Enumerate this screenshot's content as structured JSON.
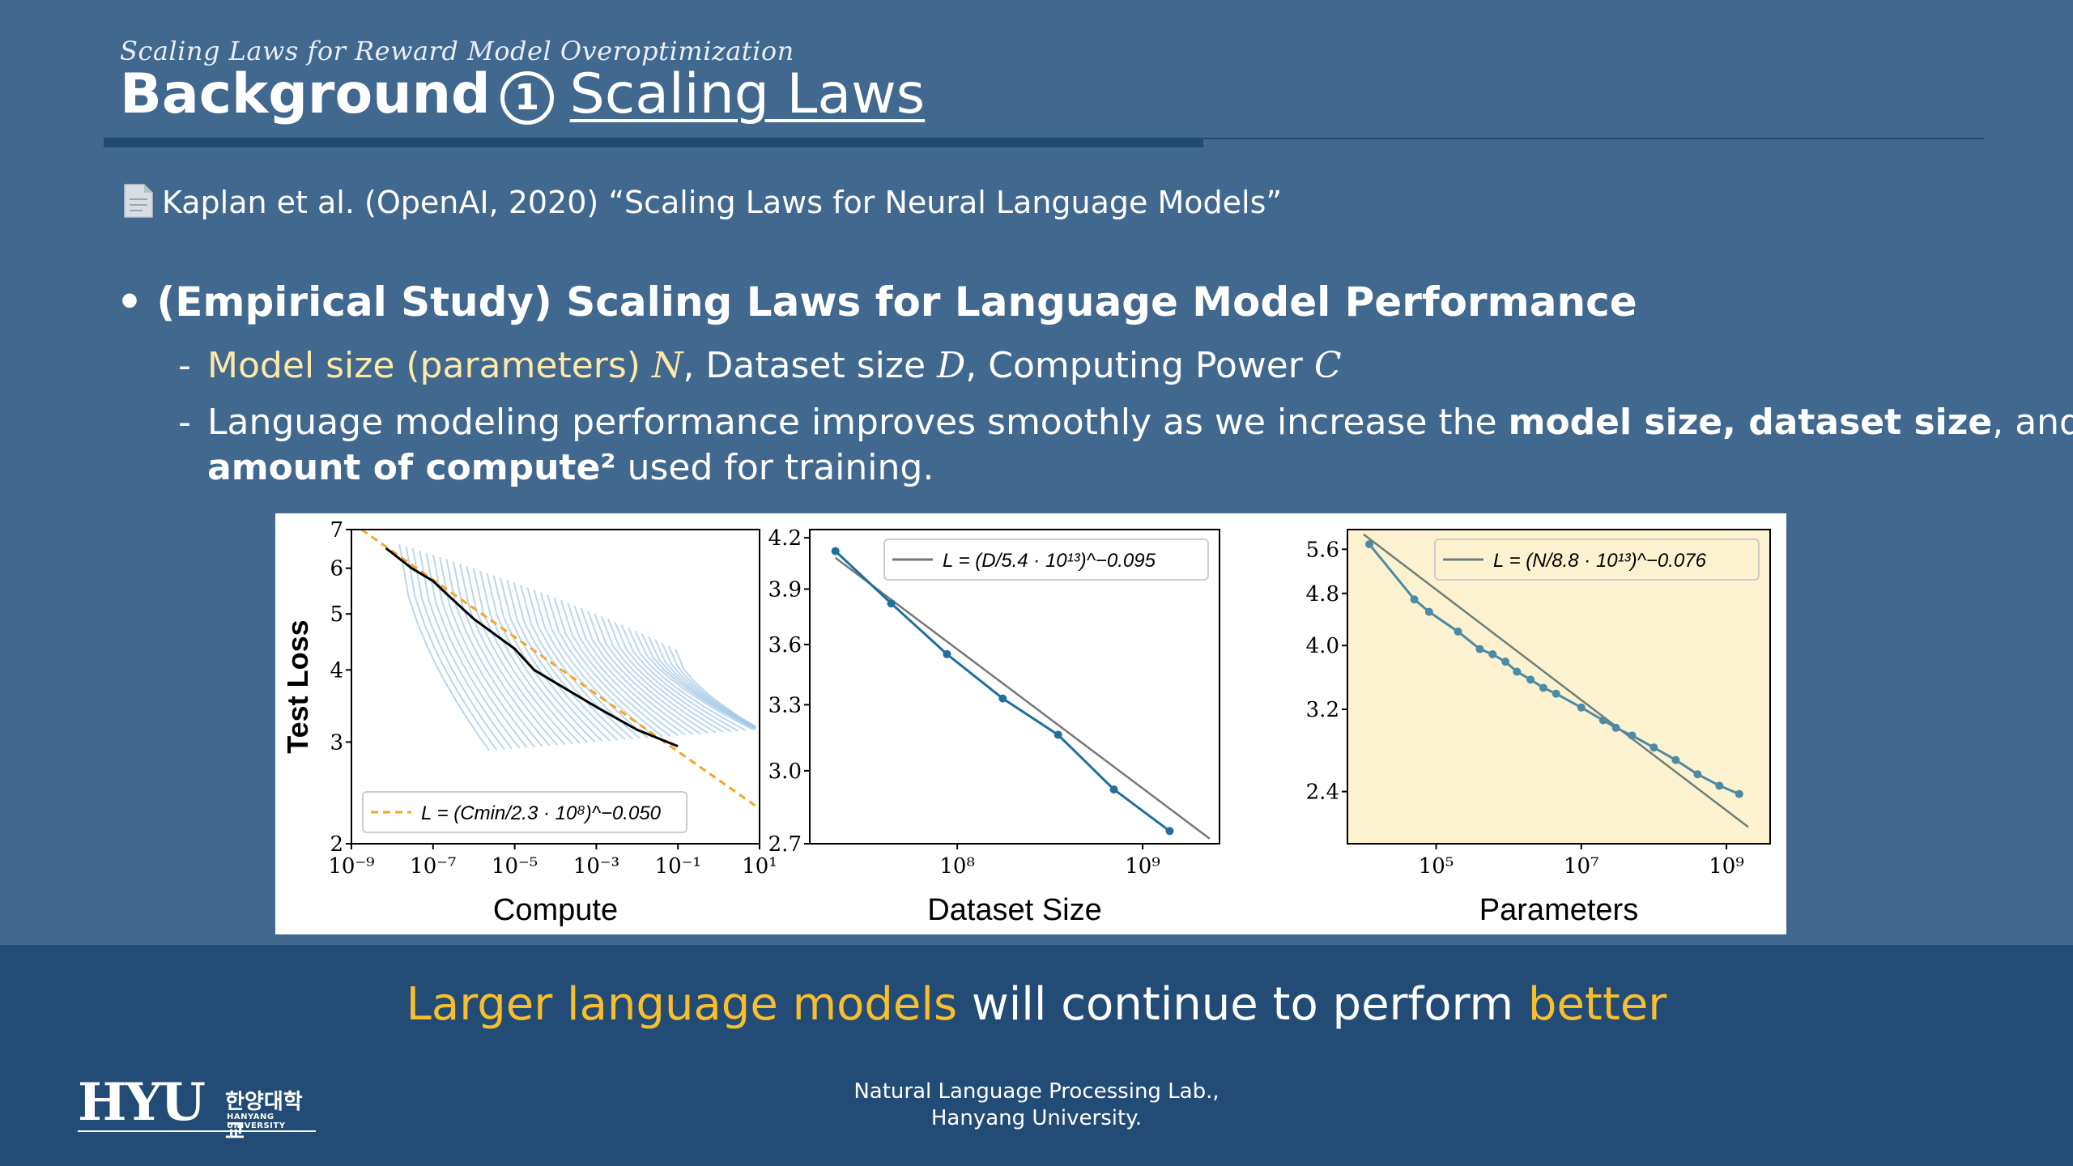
{
  "slide": {
    "subtitle": "Scaling Laws for Reward Model Overoptimization",
    "title_bold": "Background",
    "title_number": "1",
    "title_link": "Scaling Laws",
    "reference": "Kaplan et al. (OpenAI, 2020) “Scaling Laws for Neural Language Models”",
    "bullet": "(Empirical Study) Scaling Laws for Language Model Performance",
    "sub1": {
      "dash": "-",
      "part1": "Model size (parameters) ",
      "var1": "N",
      "part2": ", Dataset size ",
      "var2": "D",
      "part3": ", Computing Power ",
      "var3": "C"
    },
    "sub2": {
      "dash": "-",
      "line1_a": "Language modeling performance improves smoothly as we increase the ",
      "line1_b": "model size",
      "line1_c": ", ",
      "line1_d": "dataset size",
      "line1_e": ", and",
      "line2_a": "amount of compute²",
      "line2_b": " used for training."
    },
    "takeaway": {
      "part1": "Larger language models",
      "part2": " will continue to perform ",
      "part3": "better"
    },
    "footer_line1": "Natural Language Processing Lab.,",
    "footer_line2": "Hanyang University.",
    "logo": {
      "main": "HYU",
      "korean": "한양대학교",
      "english": "HANYANG UNIVERSITY"
    }
  },
  "colors": {
    "background": "#41688f",
    "band": "#224c76",
    "gold": "#f9be2b",
    "highlight": "#ffe9a6",
    "rule": "#1f4a73"
  },
  "icons": {
    "reference": "document-icon"
  },
  "chart_data": [
    {
      "type": "line",
      "xlabel": "Compute",
      "ylabel": "Test Loss",
      "x_scale": "log",
      "y_scale": "log",
      "xlim": [
        1e-09,
        10
      ],
      "ylim": [
        2,
        7
      ],
      "x_ticks": [
        "10⁻⁹",
        "10⁻⁷",
        "10⁻⁵",
        "10⁻³",
        "10⁻¹",
        "10¹"
      ],
      "y_ticks": [
        "2",
        "3",
        "4",
        "5",
        "6",
        "7"
      ],
      "legend": {
        "position": "lower-left",
        "label": "L = (Cmin/2.3 · 10⁸)^−0.050"
      },
      "series": [
        {
          "name": "L = (Cmin/2.3 · 10⁸)^−0.050",
          "color": "#f5a623",
          "style": "dashed",
          "x": [
            1e-09,
            10
          ],
          "y": [
            7.2,
            2.3
          ]
        },
        {
          "color": "#000000",
          "x": [
            7e-09,
            3e-08,
            1e-07,
            3e-07,
            1e-06,
            1e-05,
            3e-05,
            0.0001,
            0.001,
            0.01,
            0.1
          ],
          "y": [
            6.5,
            6.0,
            5.7,
            5.3,
            4.9,
            4.35,
            4.0,
            3.8,
            3.45,
            3.15,
            2.95
          ]
        }
      ]
    },
    {
      "type": "line",
      "xlabel": "Dataset Size",
      "x_scale": "log",
      "y_scale": "log",
      "ylim": [
        2.7,
        4.2
      ],
      "x_ticks": [
        "10⁸",
        "10⁹"
      ],
      "y_ticks": [
        "2.7",
        "3.0",
        "3.3",
        "3.6",
        "3.9",
        "4.2"
      ],
      "legend": {
        "position": "top-right",
        "label": "L = (D/5.4 · 10¹³)^−0.095"
      },
      "series": [
        {
          "name": "L = (D/5.4 · 10¹³)^−0.095",
          "color": "#777777",
          "x": [
            22000000.0,
            2300000000.0
          ],
          "y": [
            4.08,
            2.72
          ]
        },
        {
          "color": "#1f6f9e",
          "markers": true,
          "x": [
            22000000.0,
            44000000.0,
            88000000.0,
            176000000.0,
            350000000.0,
            700000000.0,
            1400000000.0
          ],
          "y": [
            4.12,
            3.82,
            3.55,
            3.33,
            3.16,
            2.92,
            2.75
          ]
        }
      ]
    },
    {
      "type": "line",
      "xlabel": "Parameters",
      "x_scale": "log",
      "y_scale": "log",
      "ylim": [
        2.0,
        6.0
      ],
      "background": "#fdf2d0",
      "x_ticks": [
        "10⁵",
        "10⁷",
        "10⁹"
      ],
      "y_ticks": [
        "2.4",
        "3.2",
        "4.0",
        "4.8",
        "5.6"
      ],
      "legend": {
        "position": "top-right",
        "label": "L = (N/8.8 · 10¹³)^−0.076"
      },
      "series": [
        {
          "name": "L = (N/8.8 · 10¹³)^−0.076",
          "color": "#6b8078",
          "x": [
            10000.0,
            2000000000.0
          ],
          "y": [
            5.9,
            2.12
          ]
        },
        {
          "color": "#4c8aa6",
          "markers": true,
          "x": [
            12000.0,
            50000.0,
            80000.0,
            200000.0,
            400000.0,
            600000.0,
            900000.0,
            1300000.0,
            2000000.0,
            3000000.0,
            4500000.0,
            10000000.0,
            20000000.0,
            30000000.0,
            50000000.0,
            100000000.0,
            200000000.0,
            400000000.0,
            800000000.0,
            1500000000.0
          ],
          "y": [
            5.7,
            4.7,
            4.5,
            4.2,
            3.95,
            3.88,
            3.78,
            3.65,
            3.55,
            3.45,
            3.38,
            3.22,
            3.08,
            3.0,
            2.92,
            2.8,
            2.68,
            2.55,
            2.45,
            2.38
          ]
        }
      ]
    }
  ]
}
